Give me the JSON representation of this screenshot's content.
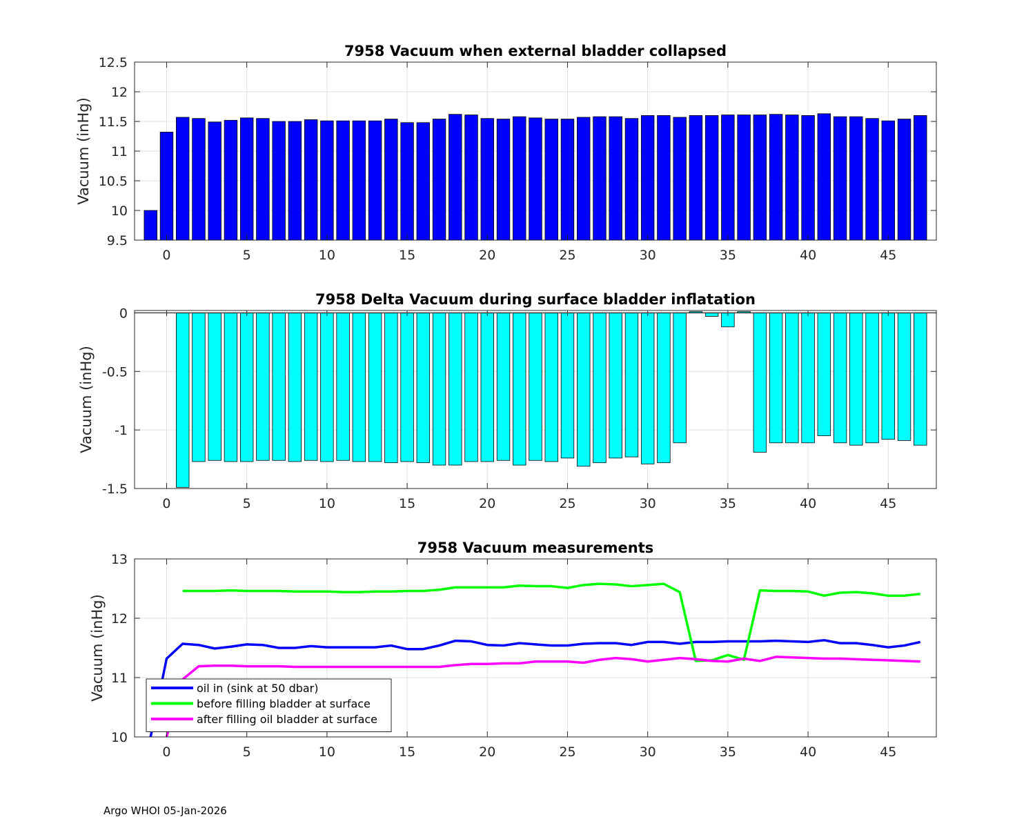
{
  "footer": "Argo WHOI 05-Jan-2026",
  "chart_data": [
    {
      "type": "bar",
      "title": "7958 Vacuum when external bladder collapsed",
      "xlabel": "",
      "ylabel": "Vacuum (inHg)",
      "xlim": [
        -2,
        48
      ],
      "ylim": [
        9.5,
        12.5
      ],
      "xticks": [
        0,
        5,
        10,
        15,
        20,
        25,
        30,
        35,
        40,
        45
      ],
      "yticks": [
        9.5,
        10,
        10.5,
        11,
        11.5,
        12,
        12.5
      ],
      "ytick_labels": [
        "9.5",
        "10",
        "10.5",
        "11",
        "11.5",
        "12",
        "12.5"
      ],
      "grid": true,
      "bar_color": "#0000ff",
      "x": [
        -1,
        0,
        1,
        2,
        3,
        4,
        5,
        6,
        7,
        8,
        9,
        10,
        11,
        12,
        13,
        14,
        15,
        16,
        17,
        18,
        19,
        20,
        21,
        22,
        23,
        24,
        25,
        26,
        27,
        28,
        29,
        30,
        31,
        32,
        33,
        34,
        35,
        36,
        37,
        38,
        39,
        40,
        41,
        42,
        43,
        44,
        45,
        46,
        47
      ],
      "values": [
        10.0,
        11.32,
        11.57,
        11.55,
        11.49,
        11.52,
        11.56,
        11.55,
        11.5,
        11.5,
        11.53,
        11.51,
        11.51,
        11.51,
        11.51,
        11.54,
        11.48,
        11.48,
        11.54,
        11.62,
        11.61,
        11.55,
        11.54,
        11.58,
        11.56,
        11.54,
        11.54,
        11.57,
        11.58,
        11.58,
        11.55,
        11.6,
        11.6,
        11.57,
        11.6,
        11.6,
        11.61,
        11.61,
        11.61,
        11.62,
        11.61,
        11.6,
        11.63,
        11.58,
        11.58,
        11.55,
        11.51,
        11.54,
        11.6
      ]
    },
    {
      "type": "bar",
      "title": "7958 Delta Vacuum during surface bladder inflatation",
      "xlabel": "",
      "ylabel": "Vacuum (inHg)",
      "xlim": [
        -2,
        48
      ],
      "ylim": [
        -1.5,
        0.02
      ],
      "xticks": [
        0,
        5,
        10,
        15,
        20,
        25,
        30,
        35,
        40,
        45
      ],
      "yticks": [
        -1.5,
        -1,
        -0.5,
        0
      ],
      "ytick_labels": [
        "-1.5",
        "-1",
        "-0.5",
        "0"
      ],
      "grid": true,
      "bar_color": "#00ffff",
      "x": [
        1,
        2,
        3,
        4,
        5,
        6,
        7,
        8,
        9,
        10,
        11,
        12,
        13,
        14,
        15,
        16,
        17,
        18,
        19,
        20,
        21,
        22,
        23,
        24,
        25,
        26,
        27,
        28,
        29,
        30,
        31,
        32,
        33,
        34,
        35,
        36,
        37,
        38,
        39,
        40,
        41,
        42,
        43,
        44,
        45,
        46,
        47
      ],
      "values": [
        -1.49,
        -1.27,
        -1.26,
        -1.27,
        -1.27,
        -1.26,
        -1.26,
        -1.27,
        -1.26,
        -1.27,
        -1.26,
        -1.27,
        -1.27,
        -1.28,
        -1.27,
        -1.28,
        -1.3,
        -1.3,
        -1.27,
        -1.27,
        -1.26,
        -1.3,
        -1.26,
        -1.27,
        -1.24,
        -1.31,
        -1.28,
        -1.24,
        -1.23,
        -1.29,
        -1.28,
        -1.11,
        0.01,
        -0.03,
        -0.12,
        0.01,
        -1.19,
        -1.11,
        -1.11,
        -1.11,
        -1.05,
        -1.11,
        -1.13,
        -1.11,
        -1.08,
        -1.09,
        -1.13
      ]
    },
    {
      "type": "line",
      "title": "7958 Vacuum measurements",
      "xlabel": "",
      "ylabel": "Vacuum (inHg)",
      "xlim": [
        -2,
        48
      ],
      "ylim": [
        10,
        13
      ],
      "xticks": [
        0,
        5,
        10,
        15,
        20,
        25,
        30,
        35,
        40,
        45
      ],
      "yticks": [
        10,
        11,
        12,
        13
      ],
      "ytick_labels": [
        "10",
        "11",
        "12",
        "13"
      ],
      "grid": true,
      "legend": "bottom-left",
      "series": [
        {
          "name": "oil in (sink at 50 dbar)",
          "color": "#0000ff",
          "x": [
            -1,
            0,
            1,
            2,
            3,
            4,
            5,
            6,
            7,
            8,
            9,
            10,
            11,
            12,
            13,
            14,
            15,
            16,
            17,
            18,
            19,
            20,
            21,
            22,
            23,
            24,
            25,
            26,
            27,
            28,
            29,
            30,
            31,
            32,
            33,
            34,
            35,
            36,
            37,
            38,
            39,
            40,
            41,
            42,
            43,
            44,
            45,
            46,
            47
          ],
          "values": [
            10.0,
            11.32,
            11.57,
            11.55,
            11.49,
            11.52,
            11.56,
            11.55,
            11.5,
            11.5,
            11.53,
            11.51,
            11.51,
            11.51,
            11.51,
            11.54,
            11.48,
            11.48,
            11.54,
            11.62,
            11.61,
            11.55,
            11.54,
            11.58,
            11.56,
            11.54,
            11.54,
            11.57,
            11.58,
            11.58,
            11.55,
            11.6,
            11.6,
            11.57,
            11.6,
            11.6,
            11.61,
            11.61,
            11.61,
            11.62,
            11.61,
            11.6,
            11.63,
            11.58,
            11.58,
            11.55,
            11.51,
            11.54,
            11.6
          ]
        },
        {
          "name": "before filling bladder at surface",
          "color": "#00ff00",
          "x": [
            1,
            2,
            3,
            4,
            5,
            6,
            7,
            8,
            9,
            10,
            11,
            12,
            13,
            14,
            15,
            16,
            17,
            18,
            19,
            20,
            21,
            22,
            23,
            24,
            25,
            26,
            27,
            28,
            29,
            30,
            31,
            32,
            33,
            34,
            35,
            36,
            37,
            38,
            39,
            40,
            41,
            42,
            43,
            44,
            45,
            46,
            47
          ],
          "values": [
            12.46,
            12.46,
            12.46,
            12.47,
            12.46,
            12.46,
            12.46,
            12.45,
            12.45,
            12.45,
            12.44,
            12.44,
            12.45,
            12.45,
            12.46,
            12.46,
            12.48,
            12.52,
            12.52,
            12.52,
            12.52,
            12.55,
            12.54,
            12.54,
            12.51,
            12.56,
            12.58,
            12.57,
            12.54,
            12.56,
            12.58,
            12.44,
            11.28,
            11.29,
            11.38,
            11.3,
            12.47,
            12.46,
            12.46,
            12.45,
            12.38,
            12.43,
            12.44,
            12.42,
            12.38,
            12.38,
            12.41
          ]
        },
        {
          "name": "after filling oil bladder at surface",
          "color": "#ff00ff",
          "x": [
            0,
            1,
            2,
            3,
            4,
            5,
            6,
            7,
            8,
            9,
            10,
            11,
            12,
            13,
            14,
            15,
            16,
            17,
            18,
            19,
            20,
            21,
            22,
            23,
            24,
            25,
            26,
            27,
            28,
            29,
            30,
            31,
            32,
            33,
            34,
            35,
            36,
            37,
            38,
            39,
            40,
            41,
            42,
            43,
            44,
            45,
            46,
            47
          ],
          "values": [
            10.0,
            10.97,
            11.19,
            11.2,
            11.2,
            11.19,
            11.19,
            11.19,
            11.18,
            11.18,
            11.18,
            11.18,
            11.18,
            11.18,
            11.18,
            11.18,
            11.18,
            11.18,
            11.21,
            11.23,
            11.23,
            11.24,
            11.24,
            11.27,
            11.27,
            11.27,
            11.25,
            11.3,
            11.33,
            11.31,
            11.27,
            11.3,
            11.33,
            11.31,
            11.28,
            11.27,
            11.32,
            11.28,
            11.35,
            11.34,
            11.33,
            11.32,
            11.32,
            11.31,
            11.3,
            11.29,
            11.28,
            11.27
          ]
        }
      ]
    }
  ]
}
